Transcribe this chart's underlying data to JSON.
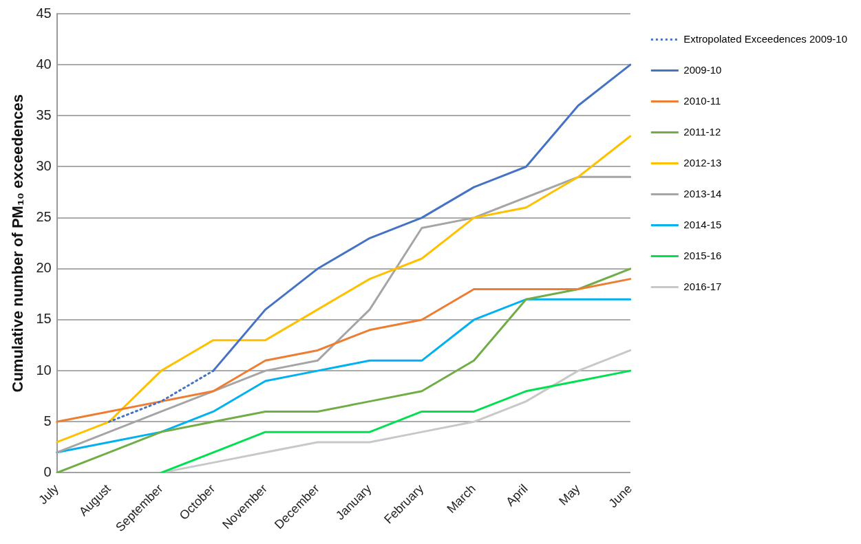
{
  "chart_data": {
    "type": "line",
    "ylabel": "Cumulative number of PM₁₀ exceedences",
    "categories": [
      "July",
      "August",
      "September",
      "October",
      "November",
      "December",
      "January",
      "February",
      "March",
      "April",
      "May",
      "June"
    ],
    "ylim": [
      0,
      45
    ],
    "yticks": [
      0,
      5,
      10,
      15,
      20,
      25,
      30,
      35,
      40,
      45
    ],
    "grid": "y",
    "legend": "right",
    "marker": "none",
    "series": [
      {
        "name": "Extropolated Exceedences 2009-10",
        "color": "#4472c4",
        "line_style": "dotted",
        "values": [
          null,
          5,
          7,
          10,
          null,
          null,
          null,
          null,
          null,
          null,
          null,
          null
        ]
      },
      {
        "name": "2009-10",
        "color": "#4472c4",
        "values": [
          null,
          null,
          null,
          10,
          16,
          20,
          23,
          25,
          28,
          30,
          36,
          40
        ]
      },
      {
        "name": "2010-11",
        "color": "#ed7d31",
        "values": [
          5,
          6,
          7,
          8,
          11,
          12,
          14,
          15,
          18,
          18,
          18,
          19
        ]
      },
      {
        "name": "2011-12",
        "color": "#70ad47",
        "values": [
          0,
          2,
          4,
          5,
          6,
          6,
          7,
          8,
          11,
          17,
          18,
          20
        ]
      },
      {
        "name": "2012-13",
        "color": "#ffc000",
        "values": [
          3,
          5,
          10,
          13,
          13,
          16,
          19,
          21,
          25,
          26,
          29,
          33
        ]
      },
      {
        "name": "2013-14",
        "color": "#a5a5a5",
        "values": [
          2,
          4,
          6,
          8,
          10,
          11,
          16,
          24,
          25,
          27,
          29,
          29
        ]
      },
      {
        "name": "2014-15",
        "color": "#00b0f0",
        "values": [
          2,
          3,
          4,
          6,
          9,
          10,
          11,
          11,
          15,
          17,
          17,
          17
        ]
      },
      {
        "name": "2015-16",
        "color": "#00e050",
        "values": [
          null,
          null,
          0,
          2,
          4,
          4,
          4,
          6,
          6,
          8,
          9,
          10
        ]
      },
      {
        "name": "2016-17",
        "color": "#c8c8c8",
        "values": [
          null,
          null,
          0,
          1,
          2,
          3,
          3,
          4,
          5,
          7,
          10,
          12
        ]
      }
    ]
  }
}
